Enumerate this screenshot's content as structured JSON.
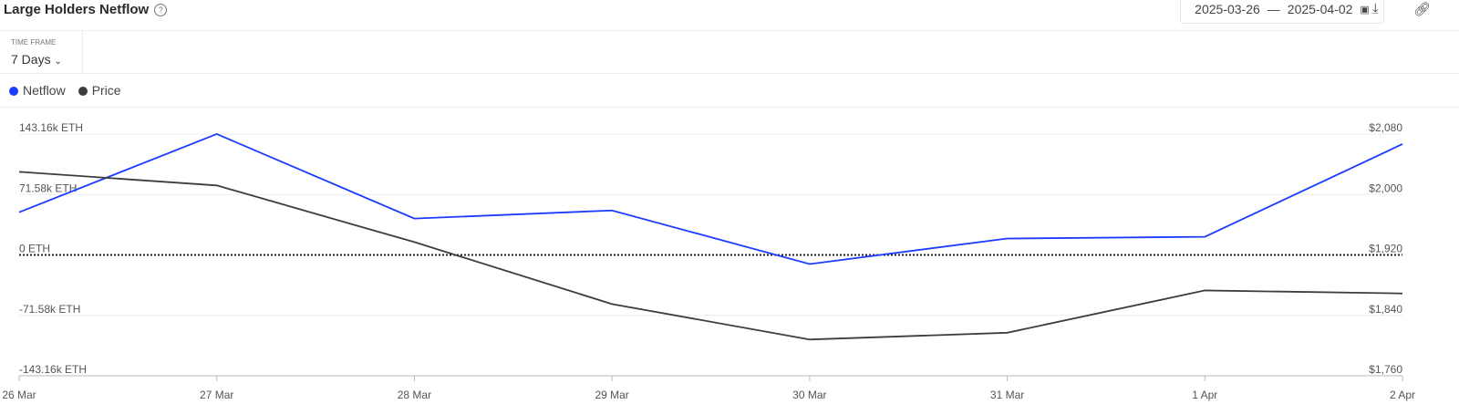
{
  "header": {
    "title": "Large Holders Netflow",
    "help_icon": "question-circle-icon",
    "date_start": "2025-03-26",
    "date_sep": "—",
    "date_end": "2025-04-02",
    "calendar_icon": "calendar-icon",
    "download_icon": "download-icon",
    "link_icon": "link-icon"
  },
  "timeframe": {
    "label": "TIME FRAME",
    "value": "7 Days"
  },
  "legend": [
    {
      "name": "Netflow",
      "color": "#1a3cff"
    },
    {
      "name": "Price",
      "color": "#3d3d3d"
    }
  ],
  "chart_data": {
    "type": "line",
    "categories": [
      "26 Mar",
      "27 Mar",
      "28 Mar",
      "29 Mar",
      "30 Mar",
      "31 Mar",
      "1 Apr",
      "2 Apr"
    ],
    "series": [
      {
        "name": "Netflow",
        "axis": "left",
        "unit": "k ETH",
        "color": "#1a3cff",
        "values": [
          50.6,
          143.2,
          43.1,
          52.7,
          -10.8,
          19.4,
          21.5,
          131.3
        ]
      },
      {
        "name": "Price",
        "axis": "right",
        "unit": "USD",
        "color": "#3d3d3d",
        "values": [
          2030,
          2012,
          1937,
          1855,
          1808,
          1817,
          1873,
          1869
        ]
      }
    ],
    "left_axis": {
      "ticks": [
        "143.16k ETH",
        "71.58k ETH",
        "0 ETH",
        "-71.58k ETH",
        "-143.16k ETH"
      ],
      "range": [
        -143.16,
        143.16
      ]
    },
    "right_axis": {
      "ticks": [
        "$2,080",
        "$2,000",
        "$1,920",
        "$1,840",
        "$1,760"
      ],
      "range": [
        1760,
        2080
      ]
    },
    "zero_line": "dotted",
    "grid": true,
    "legend_position": "top-left"
  }
}
